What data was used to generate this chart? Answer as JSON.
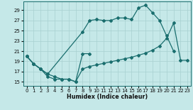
{
  "xlabel": "Humidex (Indice chaleur)",
  "bg_color": "#c5e8e8",
  "grid_color": "#a8d0d0",
  "line_color": "#1a6e6e",
  "ylim": [
    14.2,
    30.8
  ],
  "xlim": [
    -0.5,
    23.5
  ],
  "yticks": [
    15,
    17,
    19,
    21,
    23,
    25,
    27,
    29
  ],
  "xticks": [
    0,
    1,
    2,
    3,
    4,
    5,
    6,
    7,
    8,
    9,
    10,
    11,
    12,
    13,
    14,
    15,
    16,
    17,
    18,
    19,
    20,
    21,
    22,
    23
  ],
  "line1_x": [
    0,
    1,
    2,
    3,
    8,
    9,
    10,
    11,
    12,
    13,
    14,
    15,
    16,
    17,
    18,
    19,
    20,
    21
  ],
  "line1_y": [
    20.0,
    18.5,
    17.5,
    16.5,
    24.8,
    27.0,
    27.2,
    27.0,
    27.0,
    27.5,
    27.5,
    27.2,
    29.5,
    30.0,
    28.5,
    27.0,
    24.0,
    21.0
  ],
  "line2_x": [
    0,
    1,
    2,
    3,
    4,
    5,
    6,
    7,
    8,
    9
  ],
  "line2_y": [
    20.0,
    18.5,
    17.5,
    16.0,
    15.5,
    15.5,
    15.5,
    15.0,
    20.5,
    20.5
  ],
  "line3_x": [
    0,
    1,
    2,
    3,
    4,
    5,
    6,
    7,
    8,
    9,
    10,
    11,
    12,
    13,
    14,
    15,
    16,
    17,
    18,
    19,
    20,
    21,
    22,
    23
  ],
  "line3_y": [
    20.0,
    18.5,
    17.5,
    16.5,
    16.0,
    15.5,
    15.5,
    15.0,
    17.5,
    18.0,
    18.3,
    18.6,
    18.9,
    19.2,
    19.5,
    19.8,
    20.2,
    20.6,
    21.2,
    22.0,
    23.5,
    26.5,
    19.2,
    19.2
  ]
}
